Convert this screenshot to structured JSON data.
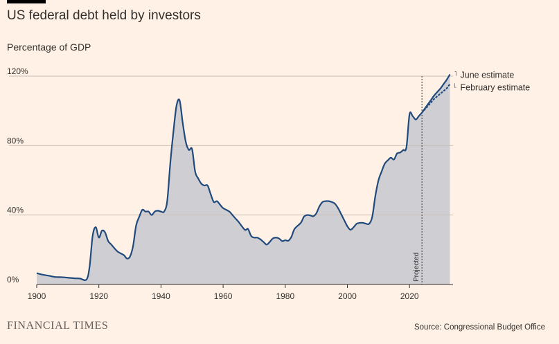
{
  "header": {
    "title": "US federal debt held by investors",
    "subtitle": "Percentage of GDP"
  },
  "footer": {
    "brand": "FINANCIAL TIMES",
    "source": "Source: Congressional Budget Office"
  },
  "colors": {
    "background": "#fff1e5",
    "line": "#20497c",
    "area": "#cfcfd3",
    "grid": "#c9bfb6",
    "text": "#33302e"
  },
  "chart_data": {
    "type": "line",
    "title": "US federal debt held by investors",
    "ylabel": "Percentage of GDP",
    "xlabel": "",
    "xlim": [
      1900,
      2034
    ],
    "ylim": [
      0,
      120
    ],
    "x_ticks": [
      1900,
      1920,
      1940,
      1960,
      1980,
      2000,
      2020
    ],
    "y_ticks": [
      0,
      40,
      80,
      120
    ],
    "x_tick_labels": [
      "1900",
      "1920",
      "1940",
      "1960",
      "1980",
      "2000",
      "2020"
    ],
    "y_tick_labels": [
      "0%",
      "40%",
      "80%",
      "120%"
    ],
    "grid": "horizontal",
    "projected_from": 2024,
    "projected_label": "Projected",
    "series": [
      {
        "name": "June estimate",
        "style": "solid",
        "points": [
          [
            1900,
            6.5
          ],
          [
            1902,
            5.6
          ],
          [
            1904,
            5.0
          ],
          [
            1906,
            4.3
          ],
          [
            1908,
            4.2
          ],
          [
            1910,
            3.9
          ],
          [
            1912,
            3.6
          ],
          [
            1914,
            3.4
          ],
          [
            1916,
            2.8
          ],
          [
            1917,
            10
          ],
          [
            1918,
            28
          ],
          [
            1919,
            33
          ],
          [
            1920,
            27
          ],
          [
            1921,
            31
          ],
          [
            1922,
            30
          ],
          [
            1923,
            25
          ],
          [
            1924,
            23
          ],
          [
            1926,
            19
          ],
          [
            1928,
            17
          ],
          [
            1929,
            15
          ],
          [
            1930,
            16
          ],
          [
            1931,
            22
          ],
          [
            1932,
            34
          ],
          [
            1933,
            39
          ],
          [
            1934,
            43
          ],
          [
            1935,
            42
          ],
          [
            1936,
            42
          ],
          [
            1937,
            40
          ],
          [
            1938,
            42
          ],
          [
            1939,
            42.5
          ],
          [
            1940,
            42
          ],
          [
            1941,
            42
          ],
          [
            1942,
            48
          ],
          [
            1943,
            70
          ],
          [
            1944,
            88
          ],
          [
            1945,
            103
          ],
          [
            1946,
            106
          ],
          [
            1947,
            93
          ],
          [
            1948,
            82
          ],
          [
            1949,
            77.5
          ],
          [
            1950,
            78
          ],
          [
            1951,
            65
          ],
          [
            1952,
            61
          ],
          [
            1953,
            58
          ],
          [
            1954,
            57
          ],
          [
            1955,
            57
          ],
          [
            1956,
            52
          ],
          [
            1957,
            47.5
          ],
          [
            1958,
            48
          ],
          [
            1959,
            46
          ],
          [
            1960,
            44
          ],
          [
            1962,
            42
          ],
          [
            1963,
            40
          ],
          [
            1964,
            38
          ],
          [
            1965,
            36
          ],
          [
            1967,
            31.5
          ],
          [
            1968,
            32
          ],
          [
            1969,
            28
          ],
          [
            1970,
            27
          ],
          [
            1971,
            27
          ],
          [
            1972,
            26
          ],
          [
            1973,
            24.5
          ],
          [
            1974,
            23
          ],
          [
            1975,
            24.5
          ],
          [
            1976,
            26.5
          ],
          [
            1977,
            27
          ],
          [
            1978,
            26.5
          ],
          [
            1979,
            25
          ],
          [
            1980,
            25.5
          ],
          [
            1981,
            25.2
          ],
          [
            1982,
            27.5
          ],
          [
            1983,
            32
          ],
          [
            1985,
            35.5
          ],
          [
            1986,
            39
          ],
          [
            1987,
            40
          ],
          [
            1988,
            39.8
          ],
          [
            1989,
            39.3
          ],
          [
            1990,
            41
          ],
          [
            1991,
            45
          ],
          [
            1992,
            47.5
          ],
          [
            1993,
            48
          ],
          [
            1994,
            48
          ],
          [
            1995,
            47.5
          ],
          [
            1996,
            46.5
          ],
          [
            1997,
            44
          ],
          [
            1998,
            40.5
          ],
          [
            1999,
            37
          ],
          [
            2000,
            33.5
          ],
          [
            2001,
            31.5
          ],
          [
            2002,
            33
          ],
          [
            2003,
            35
          ],
          [
            2004,
            35.5
          ],
          [
            2005,
            35.5
          ],
          [
            2006,
            35
          ],
          [
            2007,
            35
          ],
          [
            2008,
            39
          ],
          [
            2009,
            51
          ],
          [
            2010,
            60
          ],
          [
            2011,
            65
          ],
          [
            2012,
            69.5
          ],
          [
            2013,
            71.5
          ],
          [
            2014,
            73
          ],
          [
            2015,
            72
          ],
          [
            2016,
            75.5
          ],
          [
            2017,
            76
          ],
          [
            2018,
            77.5
          ],
          [
            2019,
            79
          ],
          [
            2020,
            98
          ],
          [
            2021,
            97
          ],
          [
            2022,
            95
          ],
          [
            2023,
            97
          ],
          [
            2024,
            99
          ],
          [
            2025,
            101.5
          ],
          [
            2026,
            104
          ],
          [
            2027,
            106.5
          ],
          [
            2028,
            109
          ],
          [
            2029,
            111
          ],
          [
            2030,
            113
          ],
          [
            2031,
            115.5
          ],
          [
            2032,
            118
          ],
          [
            2033,
            121
          ]
        ]
      },
      {
        "name": "February estimate",
        "style": "dotted",
        "points": [
          [
            2024,
            99
          ],
          [
            2025,
            101
          ],
          [
            2026,
            103
          ],
          [
            2027,
            105
          ],
          [
            2028,
            107
          ],
          [
            2029,
            108.5
          ],
          [
            2030,
            110
          ],
          [
            2031,
            111.5
          ],
          [
            2032,
            113
          ],
          [
            2033,
            115.5
          ]
        ]
      }
    ]
  }
}
